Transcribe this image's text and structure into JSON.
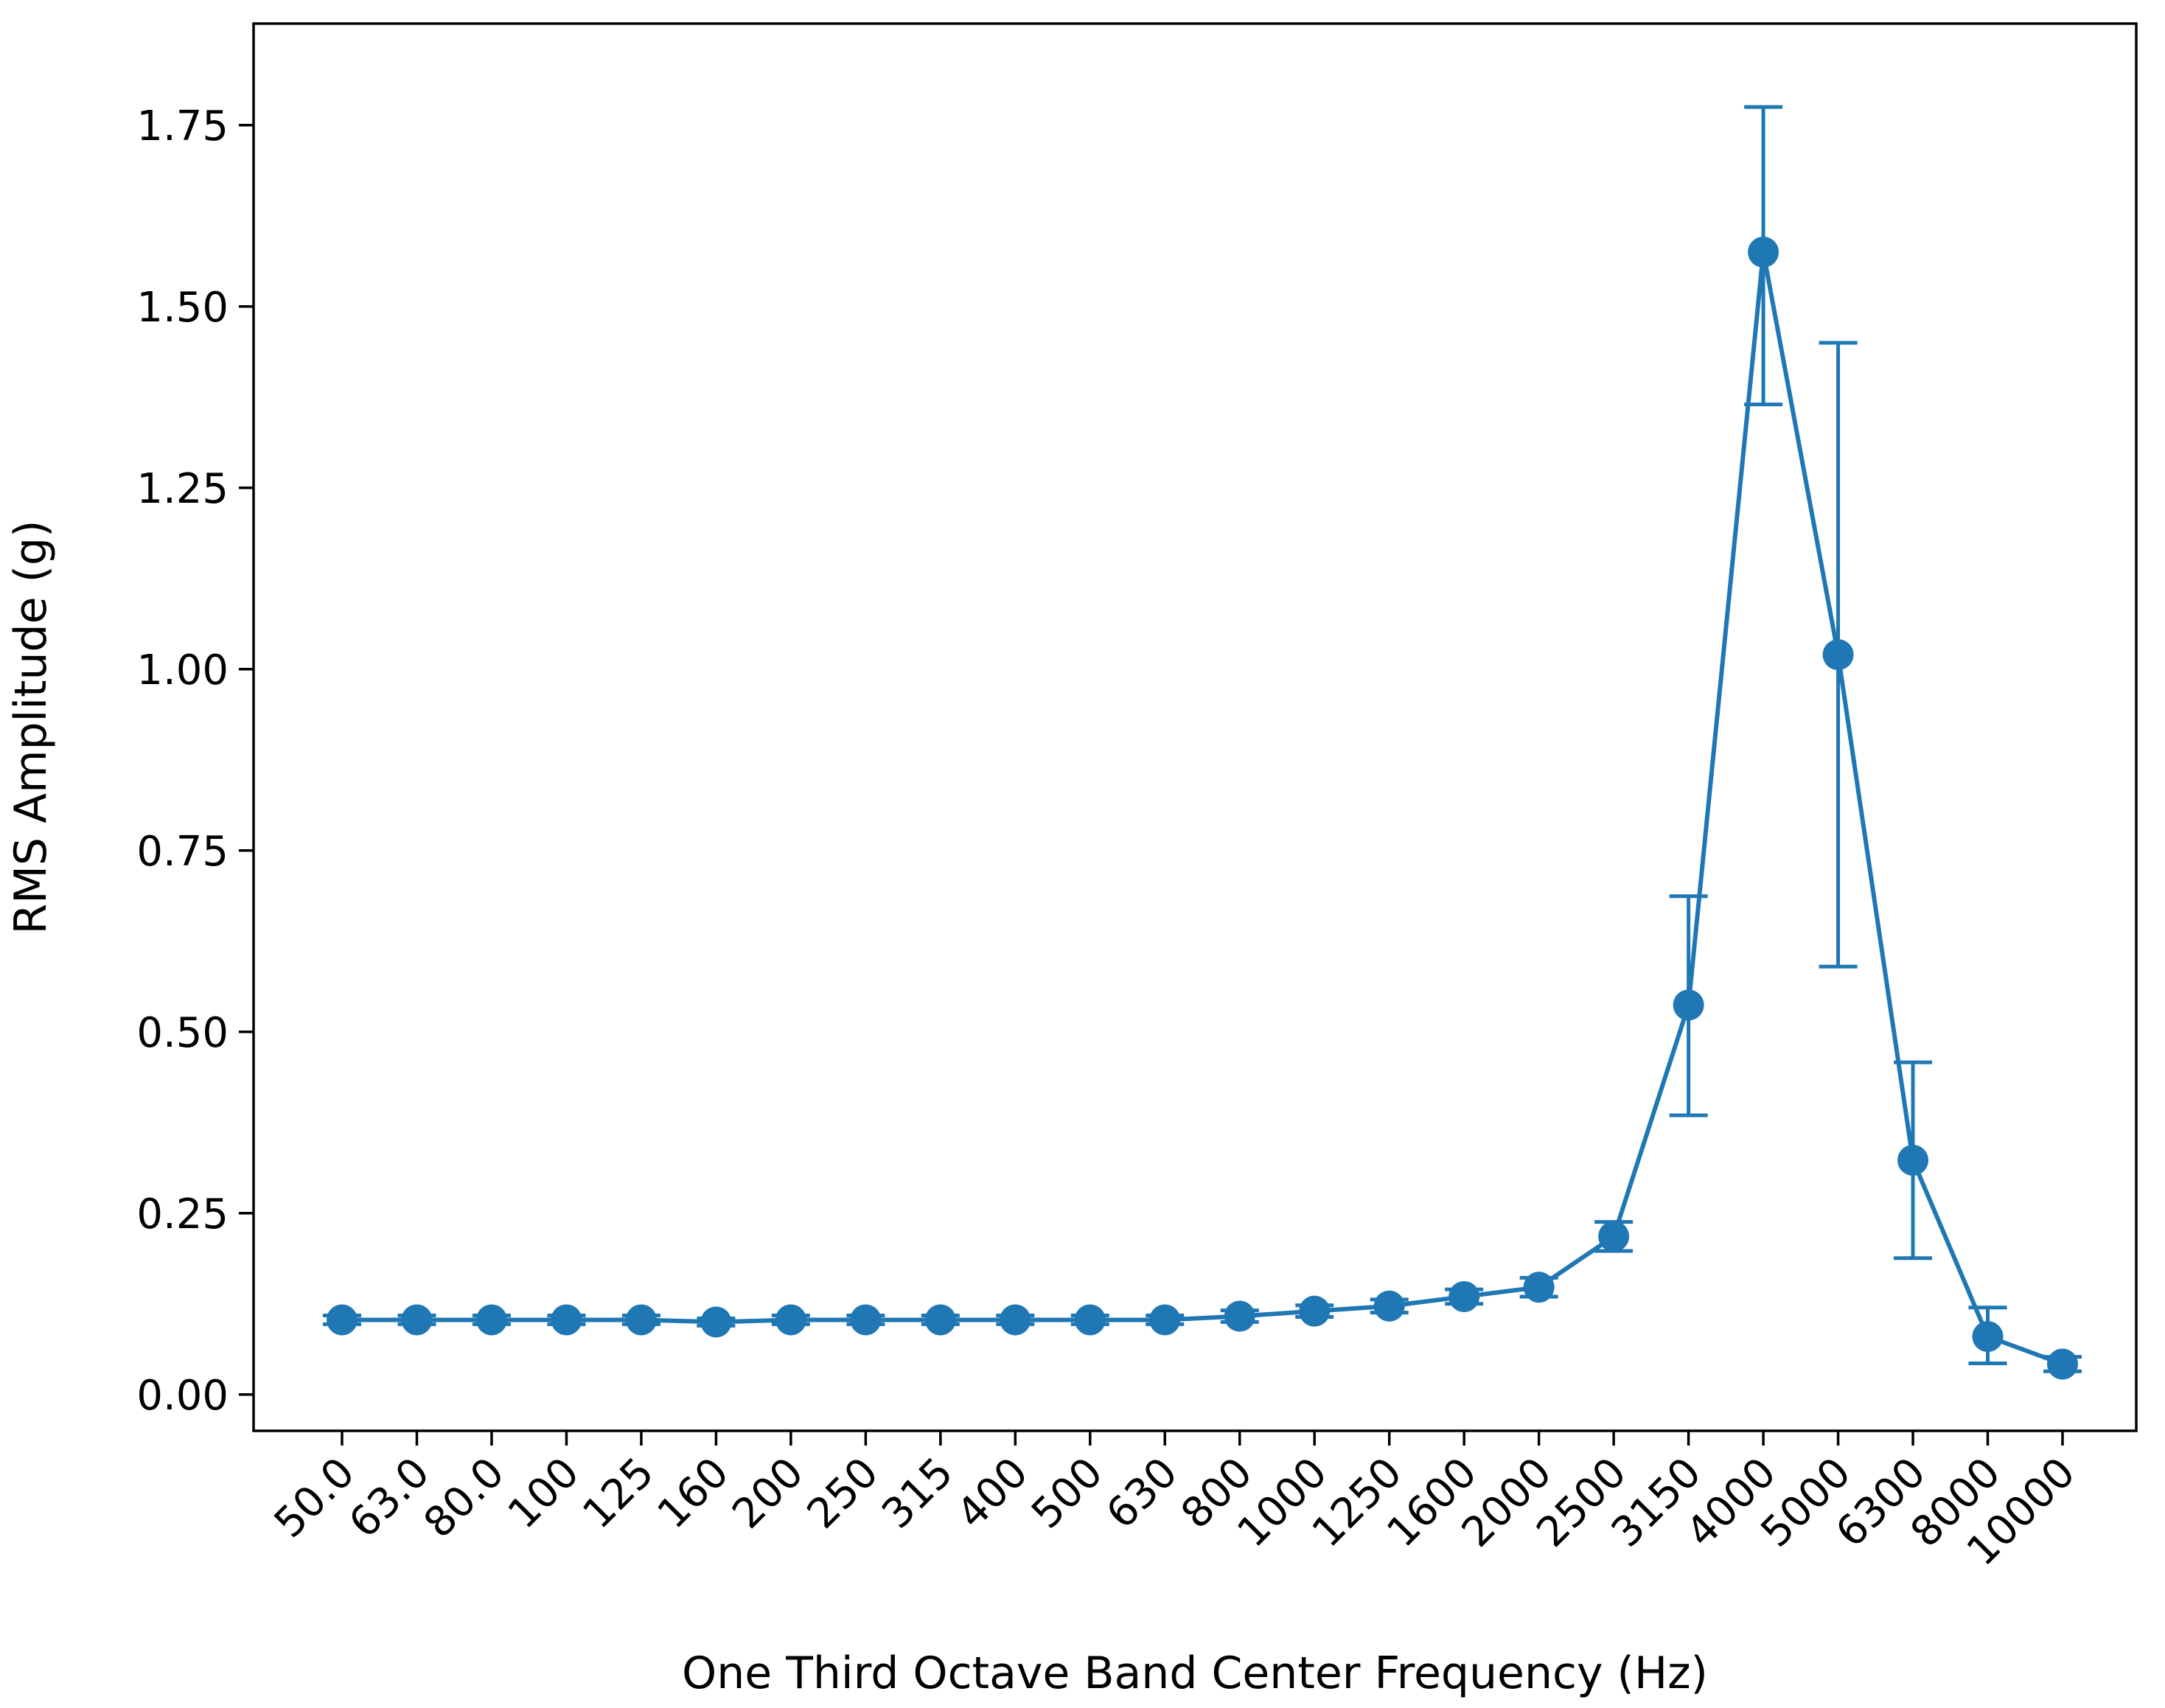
{
  "chart_data": {
    "type": "line",
    "title": "",
    "xlabel": "One Third Octave Band Center Frequency (Hz)",
    "ylabel": "RMS Amplitude (g)",
    "ylim": [
      -0.05,
      1.89
    ],
    "yticks": [
      "0.00",
      "0.25",
      "0.50",
      "0.75",
      "1.00",
      "1.25",
      "1.50",
      "1.75"
    ],
    "grid": false,
    "legend": "none",
    "categories": [
      "50.0",
      "63.0",
      "80.0",
      "100",
      "125",
      "160",
      "200",
      "250",
      "315",
      "400",
      "500",
      "630",
      "800",
      "1000",
      "1250",
      "1600",
      "2000",
      "2500",
      "3150",
      "4000",
      "5000",
      "6300",
      "8000",
      "10000"
    ],
    "series": [
      {
        "color": "#1f77b4",
        "values": [
          0.103,
          0.103,
          0.103,
          0.103,
          0.103,
          0.1,
          0.103,
          0.103,
          0.103,
          0.103,
          0.103,
          0.103,
          0.108,
          0.115,
          0.122,
          0.135,
          0.148,
          0.218,
          0.537,
          1.575,
          1.02,
          0.323,
          0.08,
          0.042
        ],
        "error_low": [
          0.097,
          0.097,
          0.097,
          0.097,
          0.097,
          0.095,
          0.097,
          0.097,
          0.097,
          0.097,
          0.097,
          0.097,
          0.1,
          0.107,
          0.113,
          0.125,
          0.135,
          0.198,
          0.385,
          1.365,
          0.59,
          0.188,
          0.043,
          0.032
        ],
        "error_high": [
          0.109,
          0.109,
          0.109,
          0.109,
          0.109,
          0.105,
          0.109,
          0.109,
          0.109,
          0.109,
          0.109,
          0.109,
          0.116,
          0.123,
          0.131,
          0.145,
          0.161,
          0.238,
          0.687,
          1.775,
          1.45,
          0.458,
          0.12,
          0.052
        ]
      }
    ]
  }
}
